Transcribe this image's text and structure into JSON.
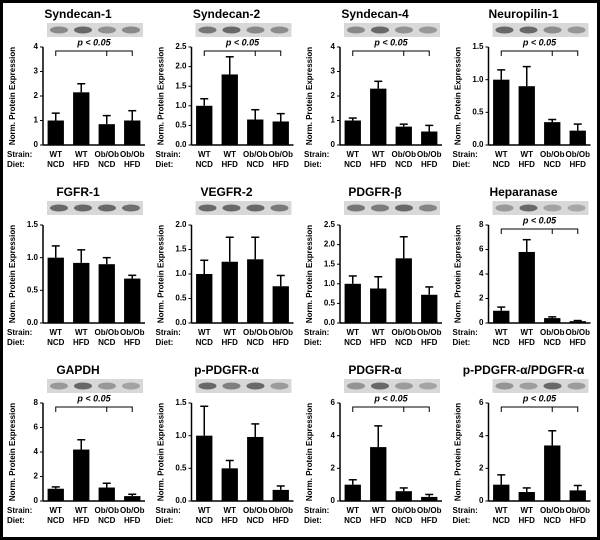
{
  "chart_data": [
    {
      "type": "bar",
      "title": "Syndecan-1",
      "ylabel": "Norm. Protein Expression",
      "strain_label": "Strain:",
      "diet_label": "Diet:",
      "strain": [
        "WT",
        "WT",
        "Ob/Ob",
        "Ob/Ob"
      ],
      "diet": [
        "NCD",
        "HFD",
        "NCD",
        "HFD"
      ],
      "values": [
        1.0,
        2.15,
        0.85,
        1.0
      ],
      "errors": [
        0.3,
        0.35,
        0.35,
        0.4
      ],
      "ylim": [
        0,
        4
      ],
      "yticks": [
        0,
        1,
        2,
        3,
        4
      ],
      "annotation": "p < 0.05",
      "color": "#000000"
    },
    {
      "type": "bar",
      "title": "Syndecan-2",
      "ylabel": "Norm. Protein Expression",
      "strain_label": "Strain:",
      "diet_label": "Diet:",
      "strain": [
        "WT",
        "WT",
        "Ob/Ob",
        "Ob/Ob"
      ],
      "diet": [
        "NCD",
        "HFD",
        "NCD",
        "HFD"
      ],
      "values": [
        1.0,
        1.8,
        0.65,
        0.6
      ],
      "errors": [
        0.18,
        0.45,
        0.25,
        0.2
      ],
      "ylim": [
        0,
        2.5
      ],
      "yticks": [
        {
          "value": 0,
          "label": "0.0"
        },
        0.5,
        {
          "value": 1,
          "label": "1.0"
        },
        1.5,
        {
          "value": 2,
          "label": "2.0"
        },
        2.5
      ],
      "annotation": "p < 0.05",
      "color": "#000000"
    },
    {
      "type": "bar",
      "title": "Syndecan-4",
      "ylabel": "Norm. Protein Expression",
      "strain_label": "Strain:",
      "diet_label": "Diet:",
      "strain": [
        "WT",
        "WT",
        "Ob/Ob",
        "Ob/Ob"
      ],
      "diet": [
        "NCD",
        "HFD",
        "NCD",
        "HFD"
      ],
      "values": [
        1.0,
        2.3,
        0.75,
        0.55
      ],
      "errors": [
        0.1,
        0.3,
        0.1,
        0.25
      ],
      "ylim": [
        0,
        4
      ],
      "yticks": [
        0,
        1,
        2,
        3,
        4
      ],
      "annotation": "p < 0.05",
      "color": "#000000"
    },
    {
      "type": "bar",
      "title": "Neuropilin-1",
      "ylabel": "Norm. Protein Expression",
      "strain_label": "Strain:",
      "diet_label": "Diet:",
      "strain": [
        "WT",
        "WT",
        "Ob/Ob",
        "Ob/Ob"
      ],
      "diet": [
        "NCD",
        "HFD",
        "NCD",
        "HFD"
      ],
      "values": [
        1.0,
        0.9,
        0.35,
        0.22
      ],
      "errors": [
        0.15,
        0.3,
        0.04,
        0.1
      ],
      "ylim": [
        0,
        1.5
      ],
      "yticks": [
        {
          "value": 0,
          "label": "0.0"
        },
        0.5,
        {
          "value": 1,
          "label": "1.0"
        },
        1.5
      ],
      "annotation": "p < 0.05",
      "color": "#000000"
    },
    {
      "type": "bar",
      "title": "FGFR-1",
      "ylabel": "Norm. Protein Expression",
      "strain_label": "Strain:",
      "diet_label": "Diet:",
      "strain": [
        "WT",
        "WT",
        "Ob/Ob",
        "Ob/Ob"
      ],
      "diet": [
        "NCD",
        "HFD",
        "NCD",
        "HFD"
      ],
      "values": [
        1.0,
        0.92,
        0.9,
        0.68
      ],
      "errors": [
        0.18,
        0.2,
        0.1,
        0.05
      ],
      "ylim": [
        0,
        1.5
      ],
      "yticks": [
        {
          "value": 0,
          "label": "0.0"
        },
        0.5,
        {
          "value": 1,
          "label": "1.0"
        },
        1.5
      ],
      "color": "#000000"
    },
    {
      "type": "bar",
      "title": "VEGFR-2",
      "ylabel": "Norm. Protein Expression",
      "strain_label": "Strain:",
      "diet_label": "Diet:",
      "strain": [
        "WT",
        "WT",
        "Ob/Ob",
        "Ob/Ob"
      ],
      "diet": [
        "NCD",
        "HFD",
        "NCD",
        "HFD"
      ],
      "values": [
        1.0,
        1.25,
        1.3,
        0.75
      ],
      "errors": [
        0.28,
        0.5,
        0.45,
        0.22
      ],
      "ylim": [
        0,
        2
      ],
      "yticks": [
        {
          "value": 0,
          "label": "0.0"
        },
        0.5,
        {
          "value": 1,
          "label": "1.0"
        },
        1.5,
        {
          "value": 2,
          "label": "2.0"
        }
      ],
      "color": "#000000"
    },
    {
      "type": "bar",
      "title": "PDGFR-β",
      "ylabel": "Norm. Protein Expression",
      "strain_label": "Strain:",
      "diet_label": "Diet:",
      "strain": [
        "WT",
        "WT",
        "Ob/Ob",
        "Ob/Ob"
      ],
      "diet": [
        "NCD",
        "HFD",
        "NCD",
        "HFD"
      ],
      "values": [
        1.0,
        0.88,
        1.65,
        0.72
      ],
      "errors": [
        0.2,
        0.3,
        0.55,
        0.2
      ],
      "ylim": [
        0,
        2.5
      ],
      "yticks": [
        {
          "value": 0,
          "label": "0.0"
        },
        0.5,
        {
          "value": 1,
          "label": "1.0"
        },
        1.5,
        {
          "value": 2,
          "label": "2.0"
        },
        2.5
      ],
      "color": "#000000"
    },
    {
      "type": "bar",
      "title": "Heparanase",
      "ylabel": "Norm. Protein Expression",
      "strain_label": "Strain:",
      "diet_label": "Diet:",
      "strain": [
        "WT",
        "WT",
        "Ob/Ob",
        "Ob/Ob"
      ],
      "diet": [
        "NCD",
        "HFD",
        "NCD",
        "HFD"
      ],
      "values": [
        1.0,
        5.8,
        0.4,
        0.15
      ],
      "errors": [
        0.3,
        1.0,
        0.1,
        0.05
      ],
      "ylim": [
        0,
        8
      ],
      "yticks": [
        0,
        2,
        4,
        6,
        8
      ],
      "annotation": "p < 0.05",
      "color": "#000000"
    },
    {
      "type": "bar",
      "title": "GAPDH",
      "ylabel": "Norm. Protein Expression",
      "strain_label": "Strain:",
      "diet_label": "Diet:",
      "strain": [
        "WT",
        "WT",
        "Ob/Ob",
        "Ob/Ob"
      ],
      "diet": [
        "NCD",
        "HFD",
        "NCD",
        "HFD"
      ],
      "values": [
        1.0,
        4.2,
        1.1,
        0.4
      ],
      "errors": [
        0.15,
        0.8,
        0.35,
        0.15
      ],
      "ylim": [
        0,
        8
      ],
      "yticks": [
        0,
        2,
        4,
        6,
        8
      ],
      "annotation": "p < 0.05",
      "color": "#000000"
    },
    {
      "type": "bar",
      "title": "p-PDGFR-α",
      "ylabel": "Norm. Protein Expression",
      "strain_label": "Strain:",
      "diet_label": "Diet:",
      "strain": [
        "WT",
        "WT",
        "Ob/Ob",
        "Ob/Ob"
      ],
      "diet": [
        "NCD",
        "HFD",
        "NCD",
        "HFD"
      ],
      "values": [
        1.0,
        0.5,
        0.98,
        0.17
      ],
      "errors": [
        0.45,
        0.12,
        0.2,
        0.06
      ],
      "ylim": [
        0,
        1.5
      ],
      "yticks": [
        {
          "value": 0,
          "label": "0.0"
        },
        0.5,
        {
          "value": 1,
          "label": "1.0"
        },
        1.5
      ],
      "color": "#000000"
    },
    {
      "type": "bar",
      "title": "PDGFR-α",
      "ylabel": "Norm. Protein Expression",
      "strain_label": "Strain:",
      "diet_label": "Diet:",
      "strain": [
        "WT",
        "WT",
        "Ob/Ob",
        "Ob/Ob"
      ],
      "diet": [
        "NCD",
        "HFD",
        "NCD",
        "HFD"
      ],
      "values": [
        1.0,
        3.3,
        0.6,
        0.25
      ],
      "errors": [
        0.3,
        1.3,
        0.2,
        0.15
      ],
      "ylim": [
        0,
        6
      ],
      "yticks": [
        0,
        2,
        4,
        6
      ],
      "annotation": "p < 0.05",
      "color": "#000000"
    },
    {
      "type": "bar",
      "title": "p-PDGFR-α/PDGFR-α",
      "ylabel": "Norm. Protein Expression",
      "strain_label": "Strain:",
      "diet_label": "Diet:",
      "strain": [
        "WT",
        "WT",
        "Ob/Ob",
        "Ob/Ob"
      ],
      "diet": [
        "NCD",
        "HFD",
        "NCD",
        "HFD"
      ],
      "values": [
        1.0,
        0.55,
        3.4,
        0.65
      ],
      "errors": [
        0.6,
        0.25,
        0.9,
        0.3
      ],
      "ylim": [
        0,
        6
      ],
      "yticks": [
        0,
        2,
        4,
        6
      ],
      "annotation": "p < 0.05",
      "color": "#000000"
    }
  ]
}
